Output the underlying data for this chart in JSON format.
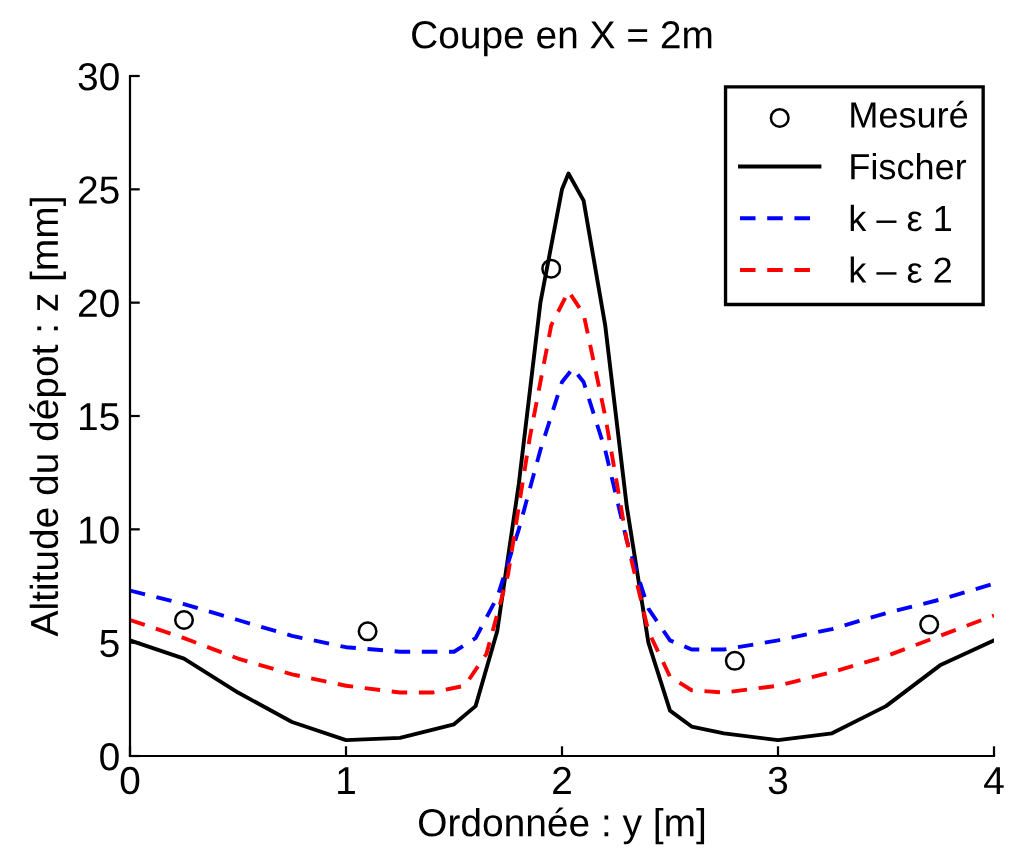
{
  "chart_data": {
    "type": "line",
    "title": "Coupe en X = 2m",
    "xlabel": "Ordonnée : y [m]",
    "ylabel": "Altitude du dépot : z [mm]",
    "xlim": [
      0,
      4
    ],
    "ylim": [
      0,
      30
    ],
    "xticks": [
      0,
      1,
      2,
      3,
      4
    ],
    "yticks": [
      0,
      5,
      10,
      15,
      20,
      25,
      30
    ],
    "grid": false,
    "legend": "top right",
    "series": [
      {
        "name": "Mesuré",
        "type": "scatter",
        "marker": "circle",
        "color": "#000000",
        "x": [
          0.25,
          1.1,
          1.95,
          2.8,
          3.7
        ],
        "values": [
          6.0,
          5.5,
          21.5,
          4.2,
          5.8
        ]
      },
      {
        "name": "Fischer",
        "line_style": "solid",
        "color": "#000000",
        "x": [
          0,
          0.25,
          0.5,
          0.75,
          1.0,
          1.25,
          1.5,
          1.6,
          1.7,
          1.8,
          1.9,
          2.0,
          2.03,
          2.1,
          2.2,
          2.3,
          2.4,
          2.5,
          2.6,
          2.75,
          3.0,
          3.25,
          3.5,
          3.75,
          4.0
        ],
        "values": [
          5.1,
          4.3,
          2.8,
          1.5,
          0.7,
          0.8,
          1.4,
          2.2,
          5.5,
          12,
          20,
          25,
          25.7,
          24.5,
          19,
          11,
          5,
          2.0,
          1.3,
          1.0,
          0.7,
          1.0,
          2.2,
          4.0,
          5.1
        ]
      },
      {
        "name": "k – ε 1",
        "line_style": "dashed",
        "color": "#0000ff",
        "x": [
          0,
          0.25,
          0.5,
          0.75,
          1.0,
          1.25,
          1.5,
          1.6,
          1.7,
          1.8,
          1.9,
          2.0,
          2.05,
          2.1,
          2.2,
          2.3,
          2.4,
          2.5,
          2.6,
          2.75,
          3.0,
          3.25,
          3.5,
          3.75,
          4.0
        ],
        "values": [
          7.3,
          6.7,
          6.0,
          5.3,
          4.8,
          4.6,
          4.6,
          5.2,
          7,
          10,
          13.5,
          16.5,
          17.1,
          16.5,
          13.5,
          9.5,
          6.5,
          5.1,
          4.7,
          4.7,
          5.1,
          5.6,
          6.3,
          6.9,
          7.6
        ]
      },
      {
        "name": "k – ε 2",
        "line_style": "dashed",
        "color": "#ff0000",
        "x": [
          0,
          0.25,
          0.5,
          0.75,
          1.0,
          1.25,
          1.4,
          1.55,
          1.65,
          1.75,
          1.85,
          1.95,
          2.03,
          2.1,
          2.2,
          2.3,
          2.4,
          2.5,
          2.6,
          2.75,
          3.0,
          3.25,
          3.5,
          3.75,
          4.0
        ],
        "values": [
          6.0,
          5.2,
          4.3,
          3.6,
          3.1,
          2.8,
          2.8,
          3.1,
          4.5,
          8,
          14,
          19,
          20.5,
          19.5,
          15,
          9.5,
          5.5,
          3.5,
          2.9,
          2.8,
          3.1,
          3.7,
          4.4,
          5.3,
          6.2
        ]
      }
    ]
  }
}
